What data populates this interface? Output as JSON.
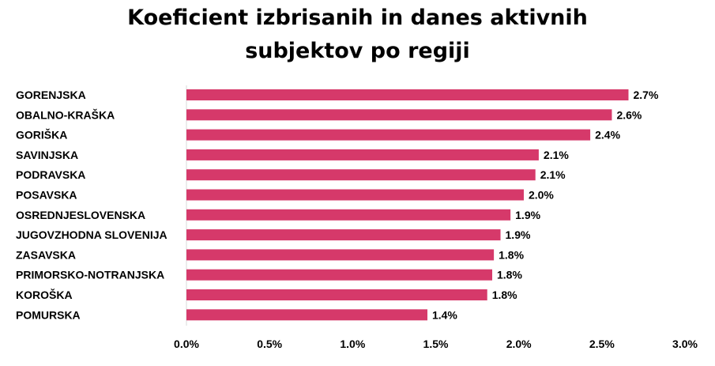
{
  "chart_data": {
    "type": "bar",
    "orientation": "horizontal",
    "title_line1": "Koeficient izbrisanih in danes aktivnih",
    "title_line2": "subjektov po regiji",
    "categories": [
      "GORENJSKA",
      "OBALNO-KRAŠKA",
      "GORIŠKA",
      "SAVINJSKA",
      "PODRAVSKA",
      "POSAVSKA",
      "OSREDNJESLOVENSKA",
      "JUGOVZHODNA SLOVENIJA",
      "ZASAVSKA",
      "PRIMORSKO-NOTRANJSKA",
      "KOROŠKA",
      "POMURSKA"
    ],
    "values": [
      2.66,
      2.56,
      2.43,
      2.12,
      2.1,
      2.03,
      1.95,
      1.89,
      1.85,
      1.84,
      1.81,
      1.45
    ],
    "value_labels": [
      "2.7%",
      "2.6%",
      "2.4%",
      "2.1%",
      "2.1%",
      "2.0%",
      "1.9%",
      "1.9%",
      "1.8%",
      "1.8%",
      "1.8%",
      "1.4%"
    ],
    "xlim": [
      0,
      3
    ],
    "x_ticks": [
      0,
      0.5,
      1,
      1.5,
      2,
      2.5,
      3
    ],
    "x_tick_labels": [
      "0.0%",
      "0.5%",
      "1.0%",
      "1.5%",
      "2.0%",
      "2.5%",
      "3.0%"
    ],
    "grid": false,
    "legend": "none",
    "bar_color": "#d6396a"
  }
}
